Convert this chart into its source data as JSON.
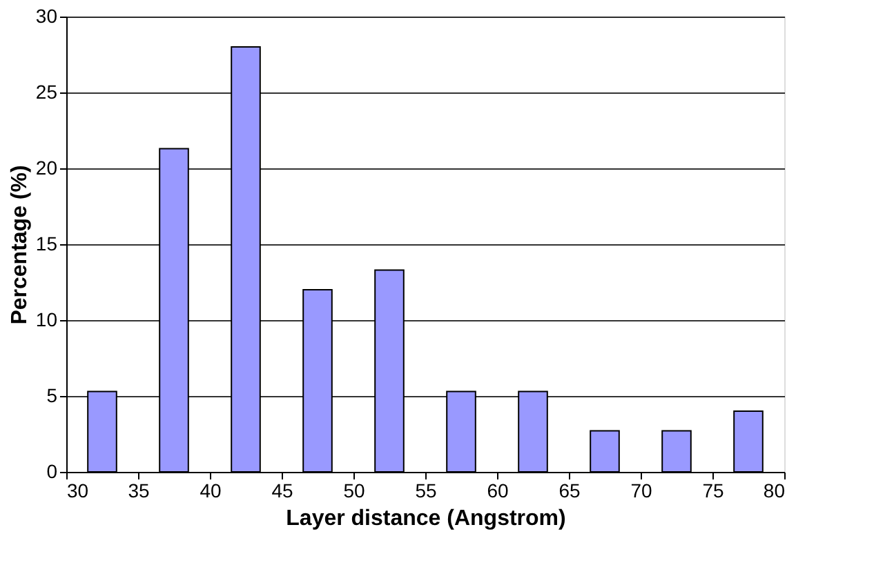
{
  "chart_data": {
    "type": "bar",
    "xlabel": "Layer distance (Angstrom)",
    "ylabel": "Percentage (%)",
    "x": [
      32.5,
      37.5,
      42.5,
      47.5,
      52.5,
      57.5,
      62.5,
      67.5,
      72.5,
      77.5
    ],
    "series": [
      {
        "color": "#9999ff",
        "values": [
          5.3,
          21.3,
          28.0,
          12.0,
          13.3,
          5.3,
          5.3,
          2.7,
          2.7,
          4.0
        ]
      }
    ],
    "xlim": [
      30,
      80
    ],
    "xticks": [
      30,
      35,
      40,
      45,
      50,
      55,
      60,
      65,
      70,
      75,
      80
    ],
    "ylim": [
      0,
      30
    ],
    "yticks": [
      0,
      5,
      10,
      15,
      20,
      25,
      30
    ],
    "grid": "y"
  }
}
